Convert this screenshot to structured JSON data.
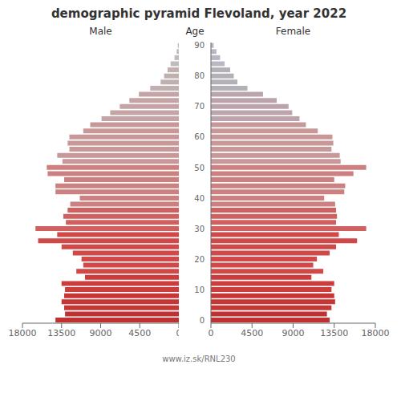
{
  "chart_data": {
    "type": "bar",
    "orientation": "horizontal",
    "title": "demographic pyramid Flevoland, year 2022",
    "y_label": "Age",
    "categories": [
      "0",
      null,
      null,
      null,
      null,
      "10",
      null,
      null,
      null,
      null,
      "20",
      null,
      null,
      null,
      null,
      "30",
      null,
      null,
      null,
      null,
      "40",
      null,
      null,
      null,
      null,
      "50",
      null,
      null,
      null,
      null,
      "60",
      null,
      null,
      null,
      null,
      "70",
      null,
      null,
      null,
      null,
      "80",
      null,
      null,
      null,
      null,
      "90"
    ],
    "series": [
      {
        "name": "Male",
        "values": [
          14200,
          13100,
          13200,
          13500,
          13200,
          13100,
          13500,
          10800,
          11800,
          11000,
          11200,
          12200,
          13500,
          16200,
          14000,
          16500,
          13000,
          13300,
          12800,
          12500,
          11400,
          14200,
          14200,
          13200,
          15100,
          15200,
          13400,
          14000,
          12600,
          12800,
          12600,
          11000,
          10200,
          8900,
          7900,
          6800,
          5700,
          4600,
          3300,
          2100,
          1700,
          1300,
          950,
          500,
          250,
          120
        ],
        "colors": [
          "#c03030",
          "#c03030",
          "#c83535",
          "#c83535",
          "#c83535",
          "#cd3c3c",
          "#cd3c3c",
          "#cd3c3c",
          "#d04848",
          "#d04848",
          "#d04848",
          "#d04848",
          "#d04848",
          "#d04848",
          "#d04848",
          "#d06060",
          "#d06060",
          "#d06060",
          "#d06060",
          "#cc8080",
          "#cc8080",
          "#cc8080",
          "#cc8080",
          "#cc8080",
          "#cc8080",
          "#cc8080",
          "#c89898",
          "#c89898",
          "#c89898",
          "#c89898",
          "#c89898",
          "#c89898",
          "#c89898",
          "#c4a4a4",
          "#c4a4a4",
          "#c4a4a4",
          "#c4a4a4",
          "#c4a4a4",
          "#c0b0b0",
          "#c0b0b0",
          "#c0b0b0",
          "#c0b0b0",
          "#c0bcbc",
          "#c0bcbc",
          "#c0bcbc",
          "#c0bcbc"
        ]
      },
      {
        "name": "Female",
        "values": [
          13000,
          12700,
          13200,
          13600,
          13500,
          13200,
          13500,
          11000,
          12300,
          11200,
          11600,
          13000,
          13700,
          16000,
          14000,
          17000,
          13700,
          13800,
          13700,
          13600,
          12400,
          14600,
          14700,
          13500,
          15600,
          17000,
          14200,
          14100,
          13200,
          13400,
          13300,
          11700,
          10400,
          9700,
          8900,
          8500,
          7200,
          5700,
          4000,
          2900,
          2500,
          2100,
          1500,
          1000,
          600,
          300
        ],
        "colors": [
          "#c03030",
          "#c03030",
          "#c83535",
          "#c83535",
          "#c83535",
          "#cd3c3c",
          "#cd3c3c",
          "#cd3c3c",
          "#d04848",
          "#d04848",
          "#d04848",
          "#d04848",
          "#d04848",
          "#d04848",
          "#d04848",
          "#d06060",
          "#d06060",
          "#d06060",
          "#d06060",
          "#cc8080",
          "#cc8080",
          "#cc8080",
          "#cc8080",
          "#cc8080",
          "#cc8080",
          "#cc8080",
          "#c89898",
          "#c89898",
          "#c89898",
          "#c89898",
          "#c89898",
          "#c89898",
          "#c89898",
          "#bca4ac",
          "#bca4ac",
          "#bca4ac",
          "#bca4ac",
          "#bca4ac",
          "#b4b0b8",
          "#b4b0b8",
          "#b4b0b8",
          "#b4b0b8",
          "#b8b8c4",
          "#b8b8c4",
          "#b8b8c4",
          "#b8b8c4"
        ]
      }
    ],
    "xlim": [
      0,
      18000
    ],
    "xticks": [
      0,
      4500,
      9000,
      13500,
      18000
    ],
    "grid": false,
    "annotations": [
      "www.iz.sk/RNL230"
    ]
  }
}
